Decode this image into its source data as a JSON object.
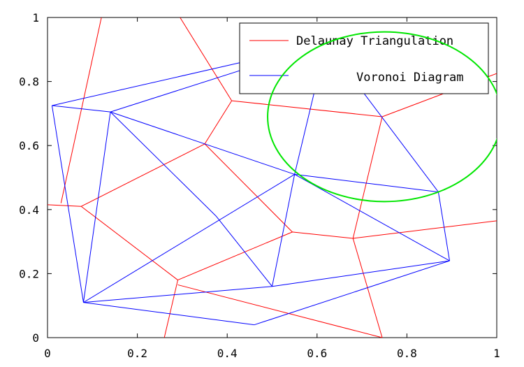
{
  "chart_data": {
    "type": "line",
    "xlim": [
      0,
      1
    ],
    "ylim": [
      0,
      1
    ],
    "x_ticks": [
      0,
      0.2,
      0.4,
      0.6,
      0.8,
      1
    ],
    "x_tick_labels": [
      "0",
      "0.2",
      "0.4",
      "0.6",
      "0.8",
      "1"
    ],
    "y_ticks": [
      0,
      0.2,
      0.4,
      0.6,
      0.8,
      1
    ],
    "y_tick_labels": [
      "0",
      "0.2",
      "0.4",
      "0.6",
      "0.8",
      "1"
    ],
    "grid": false,
    "legend_position": "top-right",
    "series": [
      {
        "name": "Delaunay Triangulation",
        "color": "#ff0000",
        "segments": [
          [
            [
              0.03,
              0.42
            ],
            [
              0.12,
              1.0
            ]
          ],
          [
            [
              0.0,
              0.415
            ],
            [
              0.075,
              0.41
            ]
          ],
          [
            [
              0.075,
              0.41
            ],
            [
              0.35,
              0.605
            ]
          ],
          [
            [
              0.35,
              0.605
            ],
            [
              0.41,
              0.74
            ]
          ],
          [
            [
              0.41,
              0.74
            ],
            [
              0.295,
              1.0
            ]
          ],
          [
            [
              0.41,
              0.74
            ],
            [
              0.745,
              0.69
            ]
          ],
          [
            [
              0.745,
              0.69
            ],
            [
              1.0,
              0.825
            ]
          ],
          [
            [
              0.745,
              0.69
            ],
            [
              0.68,
              0.31
            ]
          ],
          [
            [
              0.35,
              0.605
            ],
            [
              0.545,
              0.33
            ]
          ],
          [
            [
              0.545,
              0.33
            ],
            [
              0.68,
              0.31
            ]
          ],
          [
            [
              0.68,
              0.31
            ],
            [
              1.0,
              0.365
            ]
          ],
          [
            [
              0.68,
              0.31
            ],
            [
              0.745,
              0.0
            ]
          ],
          [
            [
              0.075,
              0.41
            ],
            [
              0.29,
              0.18
            ]
          ],
          [
            [
              0.29,
              0.18
            ],
            [
              0.545,
              0.33
            ]
          ],
          [
            [
              0.29,
              0.18
            ],
            [
              0.26,
              0.0
            ]
          ],
          [
            [
              0.29,
              0.165
            ],
            [
              0.745,
              0.0
            ]
          ]
        ]
      },
      {
        "name": "Voronoi Diagram",
        "color": "#0000ff",
        "segments": [
          [
            [
              0.01,
              0.725
            ],
            [
              0.62,
              0.92
            ]
          ],
          [
            [
              0.01,
              0.725
            ],
            [
              0.14,
              0.705
            ]
          ],
          [
            [
              0.01,
              0.725
            ],
            [
              0.08,
              0.11
            ]
          ],
          [
            [
              0.14,
              0.705
            ],
            [
              0.62,
              0.92
            ]
          ],
          [
            [
              0.14,
              0.705
            ],
            [
              0.08,
              0.11
            ]
          ],
          [
            [
              0.14,
              0.705
            ],
            [
              0.375,
              0.38
            ]
          ],
          [
            [
              0.14,
              0.705
            ],
            [
              0.55,
              0.51
            ]
          ],
          [
            [
              0.62,
              0.92
            ],
            [
              0.55,
              0.51
            ]
          ],
          [
            [
              0.62,
              0.92
            ],
            [
              0.87,
              0.455
            ]
          ],
          [
            [
              0.55,
              0.51
            ],
            [
              0.87,
              0.455
            ]
          ],
          [
            [
              0.55,
              0.51
            ],
            [
              0.08,
              0.11
            ]
          ],
          [
            [
              0.55,
              0.51
            ],
            [
              0.5,
              0.16
            ]
          ],
          [
            [
              0.55,
              0.51
            ],
            [
              0.895,
              0.24
            ]
          ],
          [
            [
              0.375,
              0.38
            ],
            [
              0.5,
              0.16
            ]
          ],
          [
            [
              0.87,
              0.455
            ],
            [
              0.895,
              0.24
            ]
          ],
          [
            [
              0.5,
              0.16
            ],
            [
              0.895,
              0.24
            ]
          ],
          [
            [
              0.08,
              0.11
            ],
            [
              0.5,
              0.16
            ]
          ],
          [
            [
              0.08,
              0.11
            ],
            [
              0.46,
              0.04
            ]
          ],
          [
            [
              0.46,
              0.04
            ],
            [
              0.895,
              0.24
            ]
          ]
        ]
      }
    ],
    "annotation_ellipse": {
      "color": "#00e600",
      "center": [
        0.75,
        0.69
      ],
      "radius_x": 0.26,
      "radius_y": 0.265
    }
  }
}
